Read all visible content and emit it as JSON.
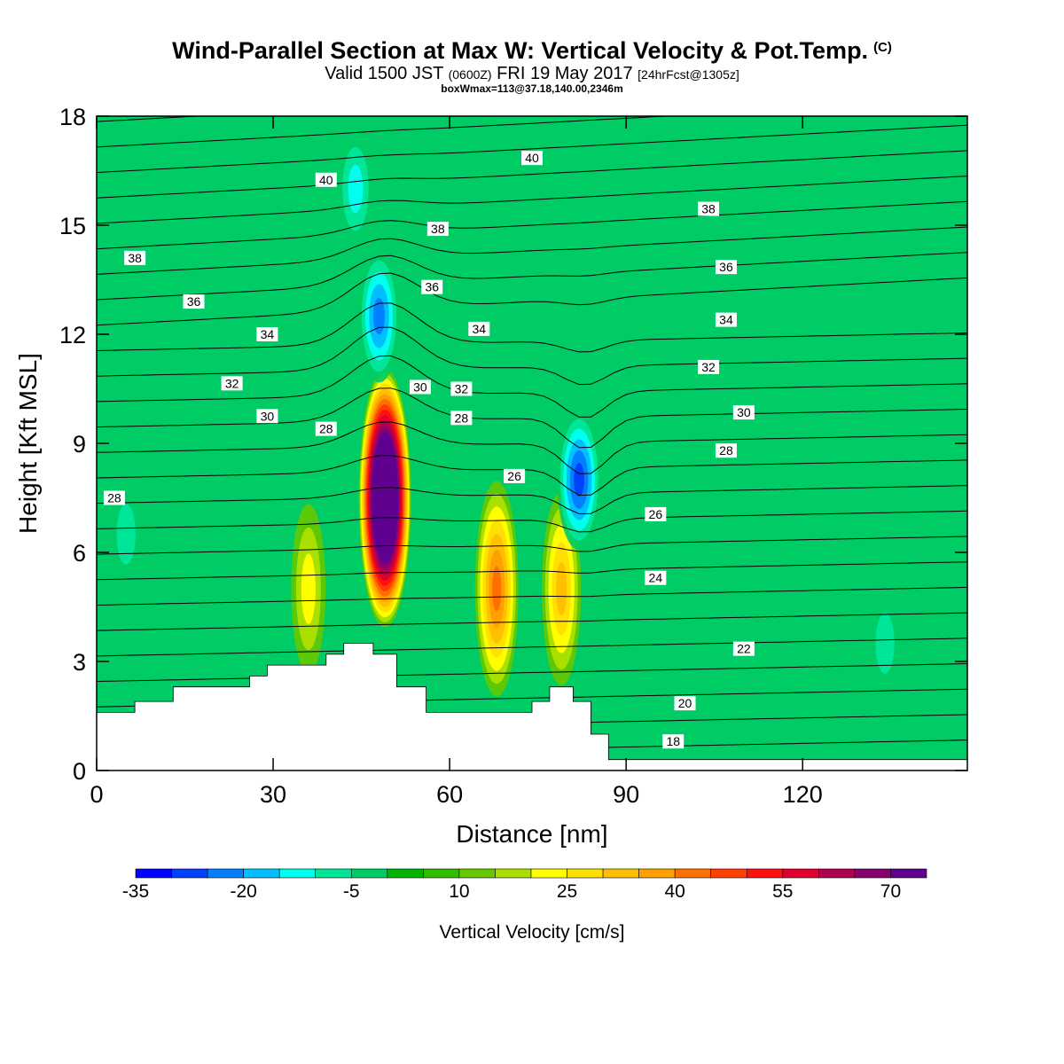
{
  "header": {
    "title_main": "Wind-Parallel Section at Max W: Vertical Velocity & Pot.Temp.",
    "title_c": "(C)",
    "valid_prefix": "Valid 1500 JST",
    "valid_utc": "(0600Z)",
    "valid_date": "FRI 19 May 2017",
    "valid_fcst": "[24hrFcst@1305z]",
    "boxline": "boxWmax=113@37.18,140.00,2346m"
  },
  "colors": {
    "background_field": "#00cc66",
    "terrain": "#ffffff",
    "contour": "#000000"
  },
  "chart_data": {
    "type": "heatmap",
    "title": "Wind-Parallel Section at Max W: Vertical Velocity & Pot.Temp.",
    "xlabel": "Distance [nm]",
    "ylabel": "Height [Kft MSL]",
    "xlim": [
      0,
      148
    ],
    "ylim": [
      0,
      18
    ],
    "x_ticks": [
      0,
      30,
      60,
      90,
      120
    ],
    "y_ticks": [
      0,
      3,
      6,
      9,
      12,
      15,
      18
    ],
    "colorbar": {
      "label": "Vertical Velocity [cm/s]",
      "tick_labels": [
        "-35",
        "-20",
        "-5",
        "10",
        "25",
        "40",
        "55",
        "70"
      ],
      "tick_values": [
        -35,
        -20,
        -5,
        10,
        25,
        40,
        55,
        70
      ],
      "min": -35,
      "step": 5,
      "colors": [
        "#0000ff",
        "#0040ff",
        "#0080ff",
        "#00bfff",
        "#00ffee",
        "#00e699",
        "#00cc66",
        "#00b300",
        "#33bb00",
        "#66c800",
        "#aae000",
        "#ffff00",
        "#ffe000",
        "#ffc000",
        "#ffa000",
        "#ff7000",
        "#ff4000",
        "#ff1010",
        "#e00030",
        "#b00050",
        "#880070",
        "#600090"
      ]
    },
    "features": [
      {
        "name": "updraft",
        "x": 49,
        "z": 7.5,
        "w_max": 113
      },
      {
        "name": "updraft",
        "x": 68,
        "z": 5,
        "w_max": 40
      },
      {
        "name": "updraft",
        "x": 79,
        "z": 5,
        "w_max": 30
      },
      {
        "name": "updraft",
        "x": 36,
        "z": 5,
        "w_max": 20
      },
      {
        "name": "downdraft",
        "x": 48,
        "z": 12.5,
        "w_min": -25
      },
      {
        "name": "downdraft",
        "x": 82,
        "z": 8,
        "w_min": -30
      },
      {
        "name": "downdraft",
        "x": 44,
        "z": 16,
        "w_min": -15
      },
      {
        "name": "downdraft",
        "x": 5,
        "z": 6.5,
        "w_min": -10
      },
      {
        "name": "downdraft",
        "x": 134,
        "z": 3.5,
        "w_min": -10
      }
    ],
    "terrain_x": [
      0,
      6.5,
      6.5,
      13,
      13,
      26,
      26,
      29,
      29,
      39,
      39,
      42,
      42,
      47,
      47,
      51,
      51,
      56,
      56,
      74,
      74,
      77,
      77,
      81,
      81,
      84,
      84,
      87,
      87,
      148
    ],
    "terrain_z": [
      1.6,
      1.6,
      1.9,
      1.9,
      2.3,
      2.3,
      2.6,
      2.6,
      2.9,
      2.9,
      3.2,
      3.2,
      3.5,
      3.5,
      3.2,
      3.2,
      2.3,
      2.3,
      1.6,
      1.6,
      1.9,
      1.9,
      2.3,
      2.3,
      1.9,
      1.9,
      1.0,
      1.0,
      0.3,
      0.3
    ],
    "contour_labels": [
      {
        "text": "40",
        "x": 39,
        "z": 16.25
      },
      {
        "text": "40",
        "x": 74,
        "z": 16.85
      },
      {
        "text": "38",
        "x": 6.5,
        "z": 14.1
      },
      {
        "text": "38",
        "x": 58,
        "z": 14.9
      },
      {
        "text": "38",
        "x": 104,
        "z": 15.45
      },
      {
        "text": "36",
        "x": 16.5,
        "z": 12.9
      },
      {
        "text": "36",
        "x": 57,
        "z": 13.3
      },
      {
        "text": "36",
        "x": 107,
        "z": 13.85
      },
      {
        "text": "34",
        "x": 29,
        "z": 12.0
      },
      {
        "text": "34",
        "x": 65,
        "z": 12.15
      },
      {
        "text": "34",
        "x": 107,
        "z": 12.4
      },
      {
        "text": "32",
        "x": 23,
        "z": 10.65
      },
      {
        "text": "32",
        "x": 62,
        "z": 10.5
      },
      {
        "text": "32",
        "x": 104,
        "z": 11.1
      },
      {
        "text": "30",
        "x": 29,
        "z": 9.75
      },
      {
        "text": "30",
        "x": 55,
        "z": 10.55
      },
      {
        "text": "30",
        "x": 110,
        "z": 9.85
      },
      {
        "text": "28",
        "x": 3,
        "z": 7.5
      },
      {
        "text": "28",
        "x": 39,
        "z": 9.4
      },
      {
        "text": "28",
        "x": 62,
        "z": 9.7
      },
      {
        "text": "28",
        "x": 107,
        "z": 8.8
      },
      {
        "text": "26",
        "x": 71,
        "z": 8.1
      },
      {
        "text": "26",
        "x": 95,
        "z": 7.05
      },
      {
        "text": "24",
        "x": 95,
        "z": 5.3
      },
      {
        "text": "22",
        "x": 110,
        "z": 3.35
      },
      {
        "text": "20",
        "x": 100,
        "z": 1.85
      },
      {
        "text": "18",
        "x": 98,
        "z": 0.8
      }
    ]
  }
}
